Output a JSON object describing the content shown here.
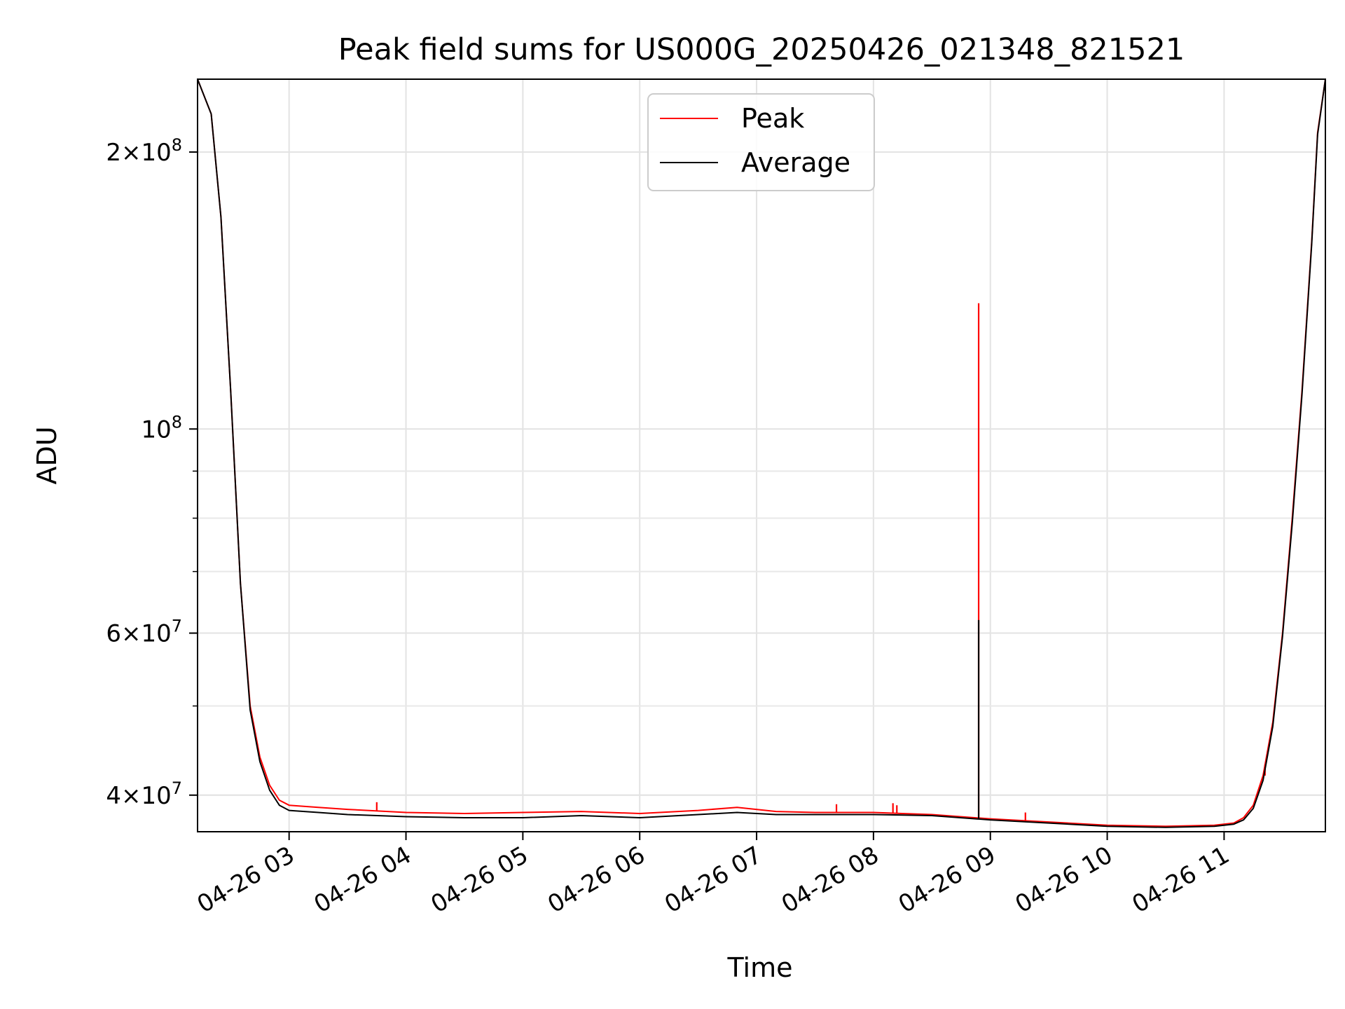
{
  "chart_data": {
    "type": "line",
    "title": "Peak field sums for US000G_20250426_021348_821521",
    "xlabel": "Time",
    "ylabel": "ADU",
    "yscale": "log",
    "grid": true,
    "legend_position": "top-center",
    "xlim": [
      "2025-04-26 02:13",
      "2025-04-26 11:52"
    ],
    "ylim": [
      36500000,
      240000000
    ],
    "x_ticks": [
      "04-26 03",
      "04-26 04",
      "04-26 05",
      "04-26 06",
      "04-26 07",
      "04-26 08",
      "04-26 09",
      "04-26 10",
      "04-26 11"
    ],
    "y_ticks": [
      {
        "value": 40000000,
        "mantissa": "4",
        "exponent": "7"
      },
      {
        "value": 60000000,
        "mantissa": "6",
        "exponent": "7"
      },
      {
        "value": 100000000,
        "mantissa": "",
        "exponent": "8"
      },
      {
        "value": 200000000,
        "mantissa": "2",
        "exponent": "8"
      }
    ],
    "series": [
      {
        "name": "Peak",
        "color": "#ff0000",
        "x": [
          "2025-04-26 02:13",
          "2025-04-26 02:20",
          "2025-04-26 02:25",
          "2025-04-26 02:30",
          "2025-04-26 02:35",
          "2025-04-26 02:40",
          "2025-04-26 02:45",
          "2025-04-26 02:50",
          "2025-04-26 02:55",
          "2025-04-26 03:00",
          "2025-04-26 03:15",
          "2025-04-26 03:30",
          "2025-04-26 04:00",
          "2025-04-26 04:30",
          "2025-04-26 05:00",
          "2025-04-26 05:30",
          "2025-04-26 06:00",
          "2025-04-26 06:30",
          "2025-04-26 06:50",
          "2025-04-26 07:10",
          "2025-04-26 07:30",
          "2025-04-26 08:00",
          "2025-04-26 08:30",
          "2025-04-26 09:00",
          "2025-04-26 09:30",
          "2025-04-26 10:00",
          "2025-04-26 10:30",
          "2025-04-26 10:55",
          "2025-04-26 11:05",
          "2025-04-26 11:10",
          "2025-04-26 11:15",
          "2025-04-26 11:20",
          "2025-04-26 11:25",
          "2025-04-26 11:30",
          "2025-04-26 11:35",
          "2025-04-26 11:40",
          "2025-04-26 11:45",
          "2025-04-26 11:48",
          "2025-04-26 11:52"
        ],
        "y": [
          240000000,
          220000000,
          170000000,
          110000000,
          68000000,
          50000000,
          44000000,
          41000000,
          39500000,
          39000000,
          38800000,
          38600000,
          38300000,
          38200000,
          38300000,
          38400000,
          38200000,
          38500000,
          38800000,
          38400000,
          38300000,
          38300000,
          38100000,
          37700000,
          37400000,
          37100000,
          37000000,
          37100000,
          37300000,
          37800000,
          39000000,
          42000000,
          48000000,
          60000000,
          80000000,
          110000000,
          160000000,
          210000000,
          240000000
        ],
        "spikes": [
          {
            "x": "2025-04-26 08:54",
            "y": 137000000
          },
          {
            "x": "2025-04-26 03:45",
            "y": 39300000
          },
          {
            "x": "2025-04-26 07:41",
            "y": 39100000
          },
          {
            "x": "2025-04-26 08:10",
            "y": 39200000
          },
          {
            "x": "2025-04-26 08:12",
            "y": 39000000
          },
          {
            "x": "2025-04-26 09:18",
            "y": 38300000
          },
          {
            "x": "2025-04-26 11:21",
            "y": 42000000
          }
        ]
      },
      {
        "name": "Average",
        "color": "#000000",
        "x": [
          "2025-04-26 02:13",
          "2025-04-26 02:20",
          "2025-04-26 02:25",
          "2025-04-26 02:30",
          "2025-04-26 02:35",
          "2025-04-26 02:40",
          "2025-04-26 02:45",
          "2025-04-26 02:50",
          "2025-04-26 02:55",
          "2025-04-26 03:00",
          "2025-04-26 03:15",
          "2025-04-26 03:30",
          "2025-04-26 04:00",
          "2025-04-26 04:30",
          "2025-04-26 05:00",
          "2025-04-26 05:30",
          "2025-04-26 06:00",
          "2025-04-26 06:30",
          "2025-04-26 06:50",
          "2025-04-26 07:10",
          "2025-04-26 07:30",
          "2025-04-26 08:00",
          "2025-04-26 08:30",
          "2025-04-26 09:00",
          "2025-04-26 09:30",
          "2025-04-26 10:00",
          "2025-04-26 10:30",
          "2025-04-26 10:55",
          "2025-04-26 11:05",
          "2025-04-26 11:10",
          "2025-04-26 11:15",
          "2025-04-26 11:20",
          "2025-04-26 11:25",
          "2025-04-26 11:30",
          "2025-04-26 11:35",
          "2025-04-26 11:40",
          "2025-04-26 11:45",
          "2025-04-26 11:48",
          "2025-04-26 11:52"
        ],
        "y": [
          240000000,
          220000000,
          170000000,
          110000000,
          68000000,
          49500000,
          43500000,
          40500000,
          39000000,
          38500000,
          38300000,
          38100000,
          37900000,
          37800000,
          37800000,
          38000000,
          37800000,
          38100000,
          38300000,
          38100000,
          38100000,
          38100000,
          38000000,
          37600000,
          37300000,
          37000000,
          36900000,
          37000000,
          37200000,
          37600000,
          38700000,
          41500000,
          47500000,
          59500000,
          79000000,
          109000000,
          159000000,
          209000000,
          240000000
        ],
        "spikes": [
          {
            "x": "2025-04-26 08:54",
            "y": 62000000
          }
        ]
      }
    ]
  }
}
